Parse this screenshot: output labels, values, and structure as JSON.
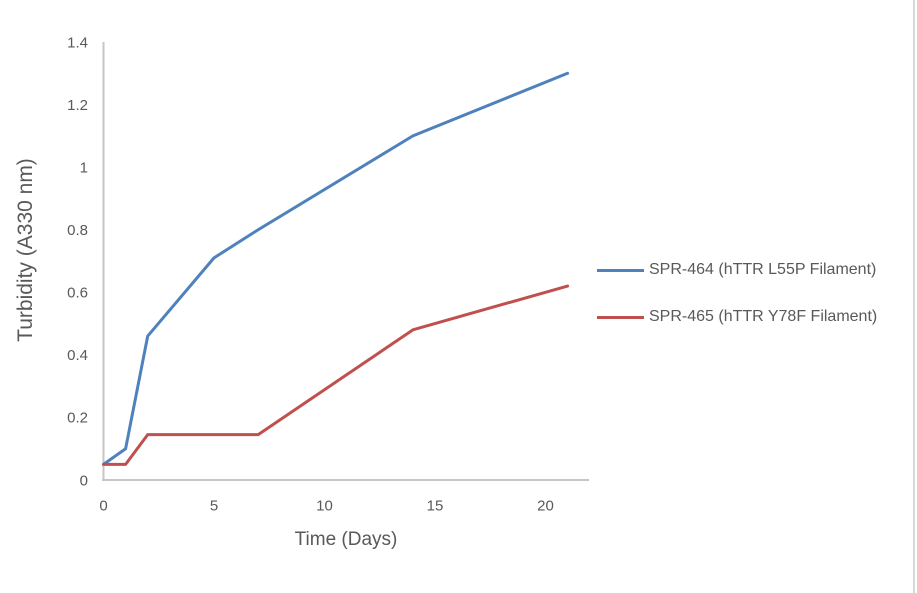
{
  "chart_data": {
    "type": "line",
    "title": "",
    "xlabel": "Time (Days)",
    "ylabel": "Turbidity (A330 nm)",
    "x": [
      0,
      1,
      2,
      5,
      7,
      14,
      21
    ],
    "series": [
      {
        "name": "SPR-464 (hTTR L55P Filament)",
        "color": "#4F81BD",
        "values": [
          0.05,
          0.1,
          0.46,
          0.71,
          0.8,
          1.1,
          1.3
        ]
      },
      {
        "name": "SPR-465 (hTTR Y78F Filament)",
        "color": "#C0504D",
        "values": [
          0.05,
          0.05,
          0.145,
          0.145,
          0.145,
          0.48,
          0.62
        ]
      }
    ],
    "x_ticks": [
      0,
      5,
      10,
      15,
      20
    ],
    "y_ticks": [
      0,
      0.2,
      0.4,
      0.6,
      0.8,
      1,
      1.2,
      1.4
    ],
    "xlim": [
      0,
      22
    ],
    "ylim": [
      0,
      1.4
    ],
    "grid": false,
    "legend_position": "right"
  },
  "colors": {
    "axis_line": "#C6C6C6",
    "tick_label": "#595959",
    "axis_title": "#595959",
    "legend_text": "#595959",
    "frame_border": "#D9D9D9",
    "background": "#FFFFFF"
  }
}
